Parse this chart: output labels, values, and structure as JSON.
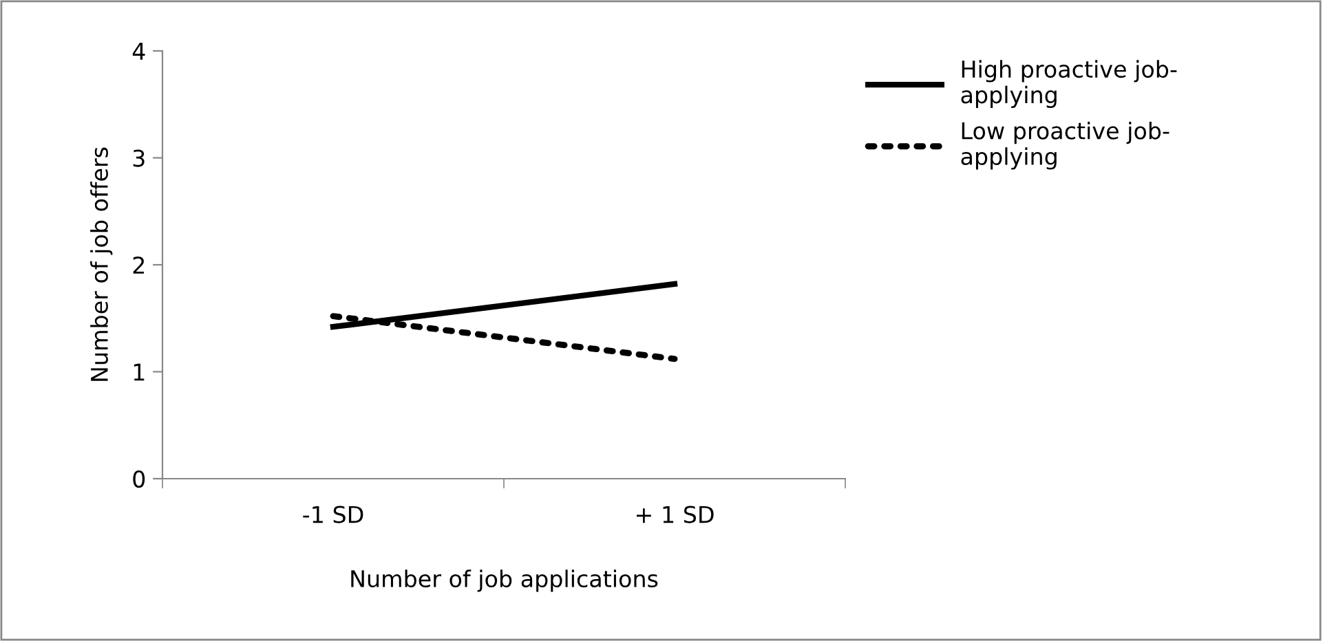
{
  "chart_data": {
    "type": "line",
    "xlabel": "Number of job applications",
    "ylabel": "Number of job offers",
    "categories": [
      "-1 SD",
      "+ 1 SD"
    ],
    "series": [
      {
        "name": "High proactive job-applying",
        "color": "#000000",
        "values": [
          1.42,
          1.82
        ],
        "line_style": "solid"
      },
      {
        "name": "Low proactive job-applying",
        "color": "#000000",
        "values": [
          1.52,
          1.12
        ],
        "line_style": "dotted"
      }
    ],
    "ylim": [
      0,
      4
    ],
    "yticks": [
      0,
      1,
      2,
      3,
      4
    ],
    "grid": false,
    "legend": "top right",
    "marker": "none"
  }
}
